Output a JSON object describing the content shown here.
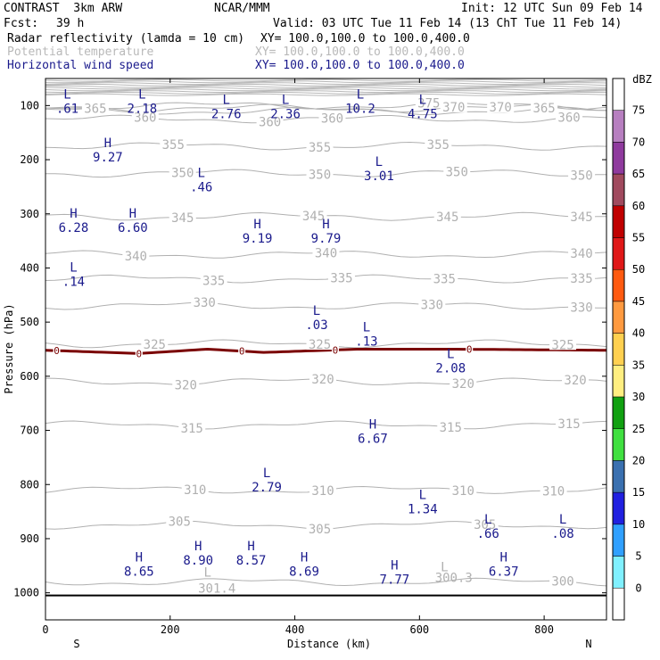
{
  "header": {
    "project": "CONTRAST  3km ARW",
    "center": "NCAR/MMM",
    "init": "Init: 12 UTC Sun 09 Feb 14",
    "fcst_label": "Fcst:",
    "fcst_value": "39 h",
    "valid": "Valid: 03 UTC Tue 11 Feb 14 (13 ChT Tue 11 Feb 14)",
    "fields": [
      {
        "name": "Radar reflectivity (lamda = 10 cm)",
        "xy": "XY= 100.0,100.0 to 100.0,400.0"
      },
      {
        "name": "Potential temperature",
        "xy": "XY= 100.0,100.0 to 100.0,400.0"
      },
      {
        "name": "Horizontal wind speed",
        "xy": "XY= 100.0,100.0 to 100.0,400.0"
      }
    ]
  },
  "chart_data": {
    "type": "cross-section contour",
    "xlabel": "Distance (km)",
    "ylabel": "Pressure (hPa)",
    "xlim": [
      0,
      900
    ],
    "ylim": [
      1050,
      50
    ],
    "xticks": [
      "0",
      "200",
      "400",
      "600",
      "800"
    ],
    "xtick_values": [
      0,
      200,
      400,
      600,
      800
    ],
    "yticks": [
      "100",
      "200",
      "300",
      "400",
      "500",
      "600",
      "700",
      "800",
      "900",
      "1000"
    ],
    "ytick_values": [
      100,
      200,
      300,
      400,
      500,
      600,
      700,
      800,
      900,
      1000
    ],
    "endpoints": {
      "left": "S",
      "right": "N"
    },
    "colorbar": {
      "unit": "dBZ",
      "levels": [
        "75",
        "70",
        "65",
        "60",
        "55",
        "50",
        "45",
        "40",
        "35",
        "30",
        "25",
        "20",
        "15",
        "10",
        "5",
        "0"
      ],
      "colors": [
        "#ffffff",
        "#b77fc0",
        "#8f3a9e",
        "#a04a5e",
        "#c00000",
        "#e01818",
        "#ff5a10",
        "#ff9a40",
        "#ffd050",
        "#ffee80",
        "#10a010",
        "#40e040",
        "#3a70b0",
        "#2020e0",
        "#30a0ff",
        "#80f0ff",
        "#ffffff"
      ]
    },
    "theta_contours": [
      {
        "value": "300",
        "p": 980,
        "label_positions_km": [
          830
        ]
      },
      {
        "value": "305",
        "p": 875,
        "label_positions_km": [
          215,
          440,
          705
        ]
      },
      {
        "value": "310",
        "p": 810,
        "label_positions_km": [
          240,
          445,
          670,
          815
        ]
      },
      {
        "value": "315",
        "p": 690,
        "label_positions_km": [
          235,
          650,
          840
        ]
      },
      {
        "value": "320",
        "p": 610,
        "label_positions_km": [
          225,
          445,
          670,
          850
        ]
      },
      {
        "value": "325",
        "p": 540,
        "label_positions_km": [
          175,
          440,
          830
        ]
      },
      {
        "value": "330",
        "p": 470,
        "label_positions_km": [
          255,
          620,
          860
        ]
      },
      {
        "value": "335",
        "p": 420,
        "label_positions_km": [
          270,
          475,
          640,
          860
        ]
      },
      {
        "value": "340",
        "p": 375,
        "label_positions_km": [
          145,
          450,
          860
        ]
      },
      {
        "value": "345",
        "p": 305,
        "label_positions_km": [
          220,
          430,
          645,
          860
        ]
      },
      {
        "value": "350",
        "p": 225,
        "label_positions_km": [
          220,
          440,
          660,
          860
        ]
      },
      {
        "value": "355",
        "p": 175,
        "label_positions_km": [
          205,
          440,
          630
        ]
      },
      {
        "value": "360",
        "p": 125,
        "label_positions_km": [
          160,
          360,
          460,
          840
        ]
      },
      {
        "value": "365",
        "p": 110,
        "label_positions_km": [
          80,
          800
        ]
      },
      {
        "value": "370",
        "p": 105,
        "label_positions_km": [
          655,
          730
        ]
      },
      {
        "value": "375",
        "p": 100,
        "label_positions_km": [
          615
        ]
      }
    ],
    "theta_extra_labels": [
      {
        "text": "L",
        "x": 260,
        "p": 970
      },
      {
        "text": "301.4",
        "x": 275,
        "p": 1000
      },
      {
        "text": "L",
        "x": 640,
        "p": 960
      },
      {
        "text": "300.3",
        "x": 655,
        "p": 980
      }
    ],
    "wind_extrema": [
      {
        "kind": "L",
        "value": ".61",
        "x": 35,
        "p": 90
      },
      {
        "kind": "L",
        "value": "2.18",
        "x": 155,
        "p": 90
      },
      {
        "kind": "L",
        "value": "2.76",
        "x": 290,
        "p": 100
      },
      {
        "kind": "L",
        "value": "2.36",
        "x": 385,
        "p": 100
      },
      {
        "kind": "L",
        "value": "10.2",
        "x": 505,
        "p": 90
      },
      {
        "kind": "L",
        "value": "4.75",
        "x": 605,
        "p": 100
      },
      {
        "kind": "H",
        "value": "9.27",
        "x": 100,
        "p": 180
      },
      {
        "kind": "L",
        "value": ".46",
        "x": 250,
        "p": 235
      },
      {
        "kind": "L",
        "value": "3.01",
        "x": 535,
        "p": 215
      },
      {
        "kind": "H",
        "value": "6.28",
        "x": 45,
        "p": 310
      },
      {
        "kind": "H",
        "value": "6.60",
        "x": 140,
        "p": 310
      },
      {
        "kind": "H",
        "value": "9.19",
        "x": 340,
        "p": 330
      },
      {
        "kind": "H",
        "value": "9.79",
        "x": 450,
        "p": 330
      },
      {
        "kind": "L",
        "value": ".14",
        "x": 45,
        "p": 410
      },
      {
        "kind": "L",
        "value": ".03",
        "x": 435,
        "p": 490
      },
      {
        "kind": "L",
        "value": ".13",
        "x": 515,
        "p": 520
      },
      {
        "kind": "L",
        "value": "2.08",
        "x": 650,
        "p": 570
      },
      {
        "kind": "H",
        "value": "6.67",
        "x": 525,
        "p": 700
      },
      {
        "kind": "L",
        "value": "2.79",
        "x": 355,
        "p": 790
      },
      {
        "kind": "L",
        "value": "1.34",
        "x": 605,
        "p": 830
      },
      {
        "kind": "L",
        "value": ".66",
        "x": 710,
        "p": 875
      },
      {
        "kind": "L",
        "value": ".08",
        "x": 830,
        "p": 875
      },
      {
        "kind": "H",
        "value": "8.65",
        "x": 150,
        "p": 945
      },
      {
        "kind": "H",
        "value": "8.90",
        "x": 245,
        "p": 925
      },
      {
        "kind": "H",
        "value": "8.57",
        "x": 330,
        "p": 925
      },
      {
        "kind": "H",
        "value": "8.69",
        "x": 415,
        "p": 945
      },
      {
        "kind": "H",
        "value": "7.77",
        "x": 560,
        "p": 960
      },
      {
        "kind": "H",
        "value": "6.37",
        "x": 735,
        "p": 945
      }
    ],
    "reflectivity_zero_line": {
      "value": "0",
      "p_at_km": [
        [
          0,
          552
        ],
        [
          150,
          558
        ],
        [
          260,
          550
        ],
        [
          350,
          556
        ],
        [
          500,
          550
        ],
        [
          650,
          550
        ],
        [
          900,
          552
        ]
      ],
      "label_positions_km": [
        18,
        150,
        315,
        465,
        680
      ]
    }
  }
}
